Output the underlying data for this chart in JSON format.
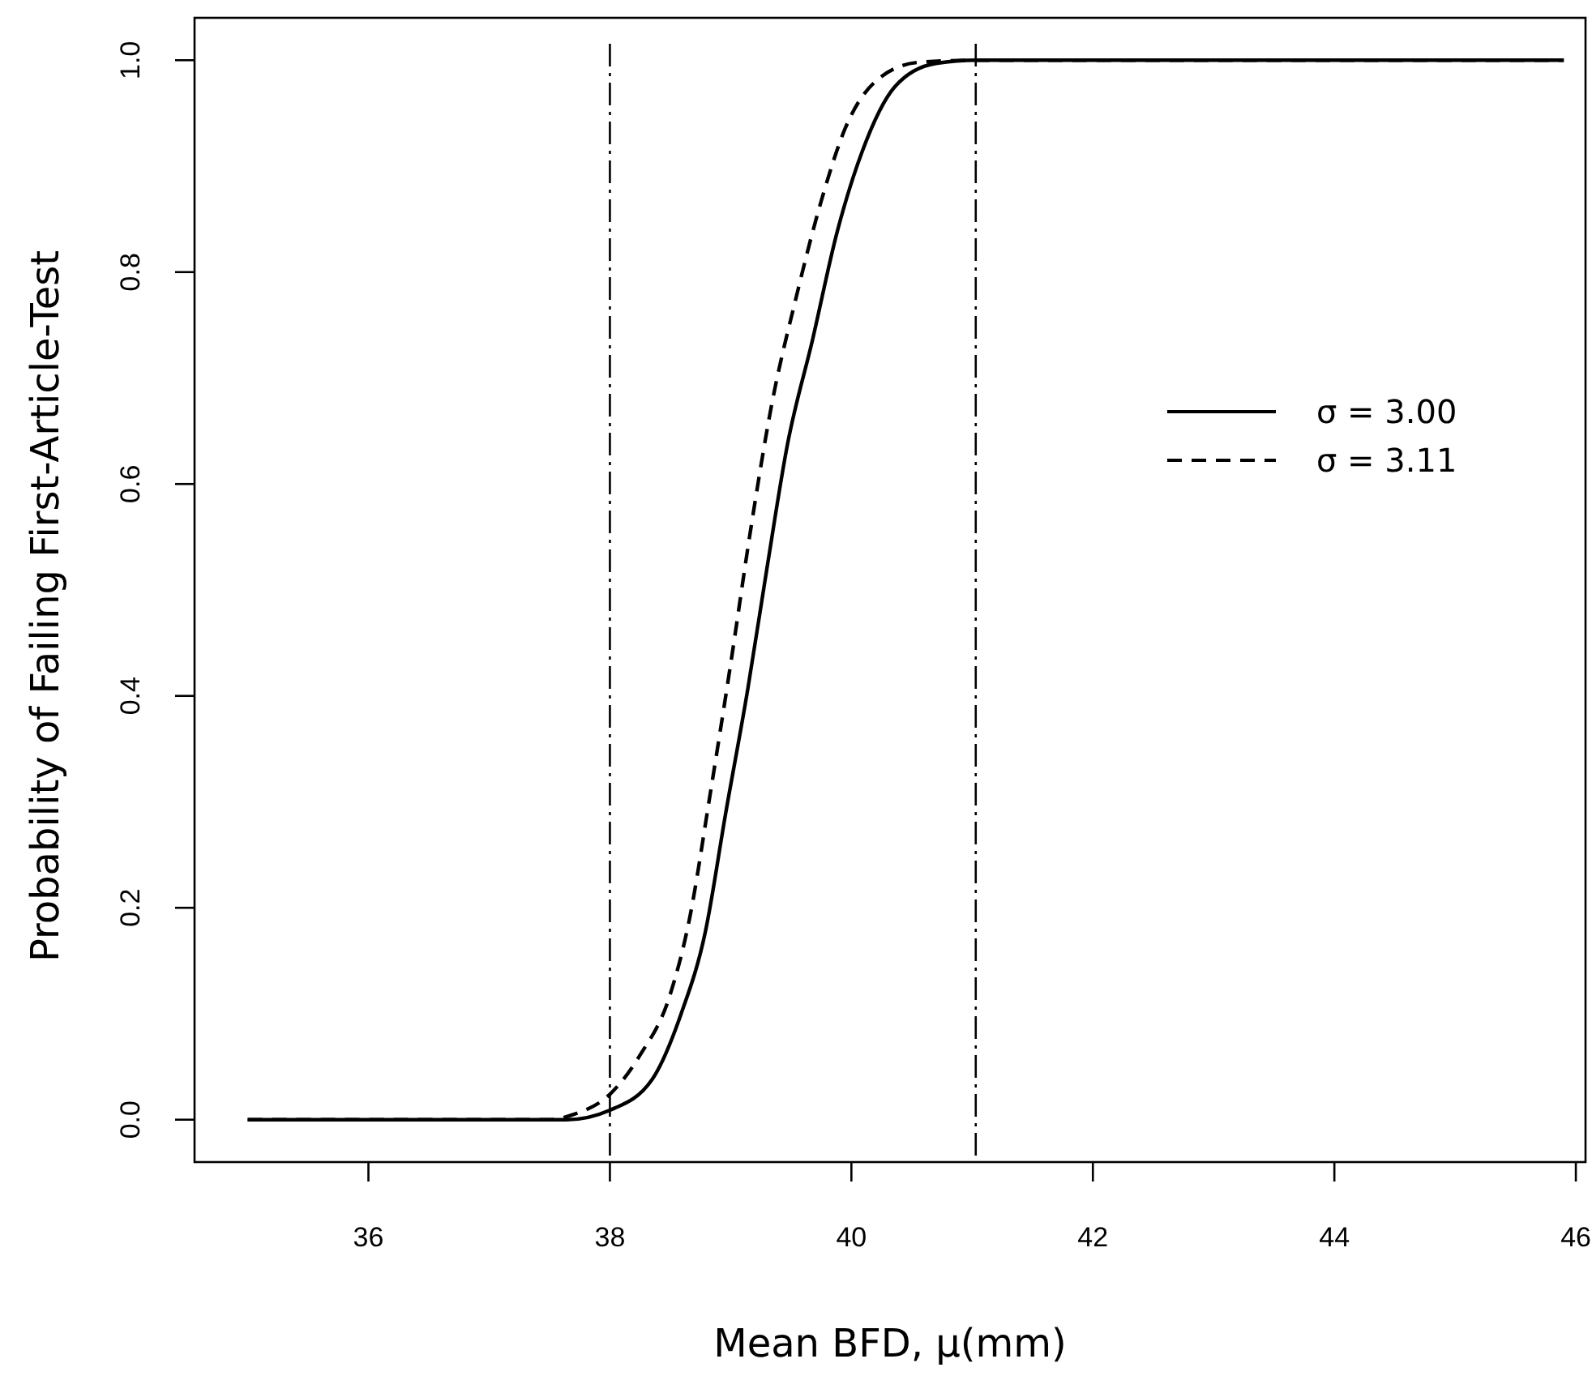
{
  "chart_data": {
    "type": "line",
    "xlabel": "Mean BFD, μ(mm)",
    "ylabel": "Probability of Failing First-Article-Test",
    "xlim": [
      34.56,
      46.08
    ],
    "xticks": [
      36,
      38,
      40,
      42,
      44,
      46
    ],
    "ylim": [
      -0.04,
      1.04
    ],
    "yticks": [
      {
        "value": 0,
        "label": "0.0"
      },
      0.2,
      0.4,
      0.6,
      0.8,
      {
        "value": 1,
        "label": "1.0"
      }
    ],
    "grid": false,
    "legend": "right",
    "marker": "none",
    "series": [
      {
        "name": "σ = 3.00",
        "color": "#000000",
        "line_style": "solid",
        "x": [
          35,
          36,
          37,
          37.64,
          38,
          38.35,
          38.59,
          38.79,
          38.96,
          39.14,
          39.3,
          39.47,
          39.68,
          39.88,
          40.09,
          40.36,
          40.7,
          41.04,
          42,
          44,
          45.9
        ],
        "values": [
          0,
          0,
          0,
          0,
          0.009,
          0.038,
          0.1,
          0.177,
          0.29,
          0.405,
          0.52,
          0.637,
          0.737,
          0.837,
          0.914,
          0.975,
          0.997,
          1,
          1,
          1,
          1
        ]
      },
      {
        "name": "σ = 3.11",
        "color": "#000000",
        "line_style": "dashed",
        "x": [
          35,
          36,
          37,
          37.5,
          37.7,
          38,
          38.25,
          38.49,
          38.66,
          38.83,
          39,
          39.17,
          39.34,
          39.54,
          39.75,
          39.95,
          40.22,
          40.56,
          41.04,
          42,
          44,
          45.9
        ],
        "values": [
          0,
          0,
          0,
          0,
          0.005,
          0.024,
          0.061,
          0.115,
          0.19,
          0.307,
          0.43,
          0.56,
          0.675,
          0.775,
          0.867,
          0.936,
          0.982,
          0.998,
          1,
          1,
          1,
          1
        ]
      }
    ],
    "ref_lines": [
      {
        "axis": "x",
        "value": 38
      },
      {
        "axis": "x",
        "value": 41.03
      }
    ]
  }
}
